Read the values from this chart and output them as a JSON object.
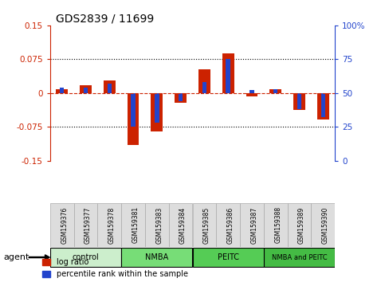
{
  "title": "GDS2839 / 11699",
  "samples": [
    "GSM159376",
    "GSM159377",
    "GSM159378",
    "GSM159381",
    "GSM159383",
    "GSM159384",
    "GSM159385",
    "GSM159386",
    "GSM159387",
    "GSM159388",
    "GSM159389",
    "GSM159390"
  ],
  "log_ratio": [
    0.008,
    0.018,
    0.028,
    -0.115,
    -0.085,
    -0.022,
    0.052,
    0.088,
    -0.008,
    0.008,
    -0.038,
    -0.058
  ],
  "percentile_rank": [
    54,
    54,
    57,
    25,
    28,
    44,
    58,
    75,
    52,
    53,
    38,
    32
  ],
  "groups": [
    {
      "label": "control",
      "start": 0,
      "end": 3
    },
    {
      "label": "NMBA",
      "start": 3,
      "end": 6
    },
    {
      "label": "PEITC",
      "start": 6,
      "end": 9
    },
    {
      "label": "NMBA and PEITC",
      "start": 9,
      "end": 12
    }
  ],
  "group_colors": [
    "#cceecc",
    "#77dd77",
    "#55cc55",
    "#44bb44"
  ],
  "ylim_left": [
    -0.15,
    0.15
  ],
  "ylim_right": [
    0,
    100
  ],
  "yticks_left": [
    -0.15,
    -0.075,
    0,
    0.075,
    0.15
  ],
  "yticks_right": [
    0,
    25,
    50,
    75,
    100
  ],
  "bar_color_red": "#cc2200",
  "bar_color_blue": "#2244cc",
  "agent_label": "agent",
  "legend_red": "log ratio",
  "legend_blue": "percentile rank within the sample",
  "red_bar_width": 0.5,
  "blue_bar_width": 0.18
}
